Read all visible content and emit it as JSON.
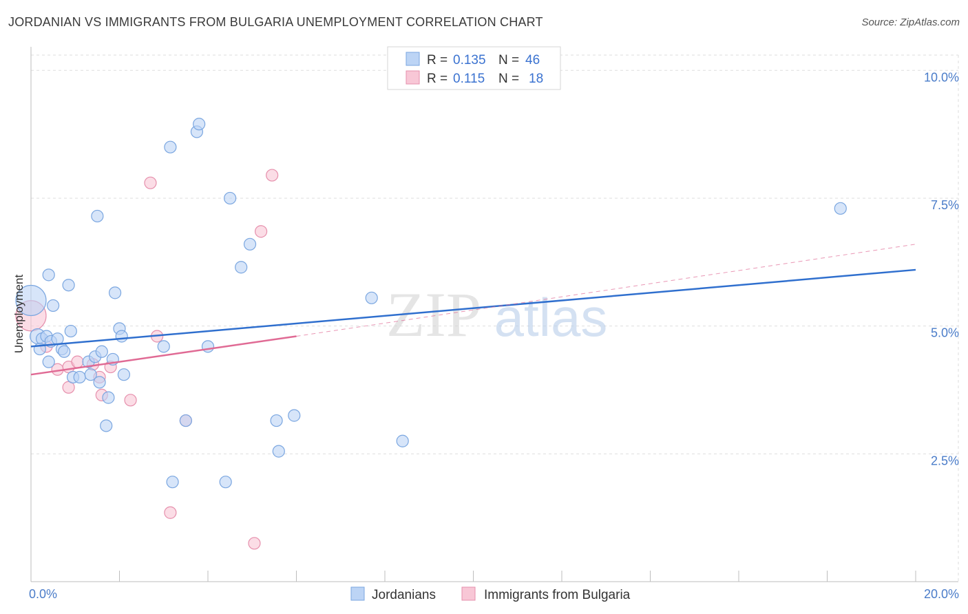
{
  "title": "JORDANIAN VS IMMIGRANTS FROM BULGARIA UNEMPLOYMENT CORRELATION CHART",
  "source": "Source: ZipAtlas.com",
  "watermark": {
    "zip": "ZIP",
    "atlas": "atlas"
  },
  "colors": {
    "blue_fill": "#bcd4f5",
    "blue_stroke": "#7aa6e0",
    "blue_line": "#2f6fce",
    "pink_fill": "#f8c7d6",
    "pink_stroke": "#e68fac",
    "pink_line": "#e06a94",
    "tick_text": "#4a7cc9",
    "grid": "#dedede"
  },
  "legend": {
    "rows": [
      {
        "series": "Jordanians",
        "r_label": "R =",
        "r_value": "0.135",
        "n_label": "N =",
        "n_value": "46"
      },
      {
        "series": "Immigrants from Bulgaria",
        "r_label": "R =",
        "r_value": "0.115",
        "n_label": "N =",
        "n_value": "18"
      }
    ]
  },
  "chart_data": {
    "type": "scatter",
    "title": "JORDANIAN VS IMMIGRANTS FROM BULGARIA UNEMPLOYMENT CORRELATION CHART",
    "xlabel": "",
    "ylabel": "Unemployment",
    "xlim": [
      0,
      20
    ],
    "ylim": [
      0,
      10.3
    ],
    "x_tick_labels": [
      {
        "value": 0,
        "label": "0.0%"
      },
      {
        "value": 20,
        "label": "20.0%"
      }
    ],
    "x_minor_ticks": [
      2,
      4,
      6,
      8,
      10,
      12,
      14,
      16,
      18,
      20
    ],
    "y_ticks": [
      {
        "value": 2.5,
        "label": "2.5%"
      },
      {
        "value": 5.0,
        "label": "5.0%"
      },
      {
        "value": 7.5,
        "label": "7.5%"
      },
      {
        "value": 10.0,
        "label": "10.0%"
      }
    ],
    "grid": true,
    "legend_position": "top-center",
    "series": [
      {
        "name": "Jordanians",
        "points": [
          [
            0.0,
            5.5,
            3
          ],
          [
            0.15,
            4.8,
            2
          ],
          [
            0.25,
            4.75,
            1
          ],
          [
            0.35,
            4.8,
            1
          ],
          [
            0.4,
            6.0,
            1
          ],
          [
            0.45,
            4.7,
            1
          ],
          [
            0.5,
            5.4,
            1
          ],
          [
            0.6,
            4.75,
            1
          ],
          [
            0.4,
            4.3,
            1
          ],
          [
            0.7,
            4.55,
            1
          ],
          [
            0.75,
            4.5,
            1
          ],
          [
            0.85,
            5.8,
            1
          ],
          [
            0.9,
            4.9,
            1
          ],
          [
            0.95,
            4.0,
            1
          ],
          [
            1.1,
            4.0,
            1
          ],
          [
            1.3,
            4.3,
            1
          ],
          [
            1.35,
            4.05,
            1
          ],
          [
            1.45,
            4.4,
            1
          ],
          [
            1.55,
            3.9,
            1
          ],
          [
            1.6,
            4.5,
            1
          ],
          [
            1.7,
            3.05,
            1
          ],
          [
            1.75,
            3.6,
            1
          ],
          [
            1.85,
            4.35,
            1
          ],
          [
            1.9,
            5.65,
            1
          ],
          [
            2.0,
            4.95,
            1
          ],
          [
            2.1,
            4.05,
            1
          ],
          [
            2.05,
            4.8,
            1
          ],
          [
            1.5,
            7.15,
            1
          ],
          [
            3.0,
            4.6,
            1
          ],
          [
            4.0,
            4.6,
            1
          ],
          [
            3.5,
            3.15,
            1
          ],
          [
            4.5,
            7.5,
            1
          ],
          [
            3.15,
            8.5,
            1
          ],
          [
            3.75,
            8.8,
            1
          ],
          [
            3.8,
            8.95,
            1
          ],
          [
            4.95,
            6.6,
            1
          ],
          [
            4.75,
            6.15,
            1
          ],
          [
            5.55,
            3.15,
            1
          ],
          [
            5.95,
            3.25,
            1
          ],
          [
            5.6,
            2.55,
            1
          ],
          [
            3.2,
            1.95,
            1
          ],
          [
            4.4,
            1.95,
            1
          ],
          [
            7.7,
            5.55,
            1
          ],
          [
            8.4,
            2.75,
            1
          ],
          [
            18.3,
            7.3,
            1
          ],
          [
            0.2,
            4.55,
            1
          ]
        ],
        "trend_line": {
          "x": [
            0,
            20
          ],
          "y": [
            4.6,
            6.1
          ]
        }
      },
      {
        "name": "Immigrants from Bulgaria",
        "points": [
          [
            0.0,
            5.2,
            3
          ],
          [
            0.35,
            4.6,
            1
          ],
          [
            0.6,
            4.15,
            1
          ],
          [
            0.85,
            4.2,
            1
          ],
          [
            0.85,
            3.8,
            1
          ],
          [
            1.05,
            4.3,
            1
          ],
          [
            1.4,
            4.25,
            1
          ],
          [
            1.6,
            3.65,
            1
          ],
          [
            1.8,
            4.2,
            1
          ],
          [
            1.55,
            4.0,
            1
          ],
          [
            2.25,
            3.55,
            1
          ],
          [
            2.7,
            7.8,
            1
          ],
          [
            2.85,
            4.8,
            1
          ],
          [
            3.5,
            3.15,
            1
          ],
          [
            5.2,
            6.85,
            1
          ],
          [
            5.45,
            7.95,
            1
          ],
          [
            3.15,
            1.35,
            1
          ],
          [
            5.05,
            0.75,
            1
          ]
        ],
        "trend_line": {
          "x": [
            0,
            6.0
          ],
          "y": [
            4.05,
            4.8
          ]
        },
        "trend_line_extension": {
          "x": [
            6.0,
            20
          ],
          "y": [
            4.8,
            6.6
          ]
        }
      }
    ]
  }
}
